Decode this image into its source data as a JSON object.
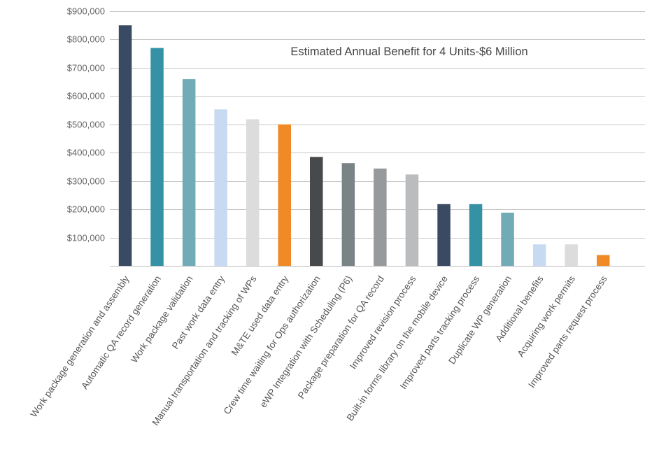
{
  "chart_data": {
    "type": "bar",
    "title": "Estimated Annual Benefit for 4 Units-$6 Million",
    "xlabel": "",
    "ylabel": "",
    "ylim": [
      0,
      900000
    ],
    "yticks": [
      100000,
      200000,
      300000,
      400000,
      500000,
      600000,
      700000,
      800000,
      900000
    ],
    "ytick_labels": [
      "$100,000",
      "$200,000",
      "$300,000",
      "$400,000",
      "$500,000",
      "$600,000",
      "$700,000",
      "$800,000",
      "$900,000"
    ],
    "grid": true,
    "legend": "none",
    "categories": [
      "Work package generation and assembly",
      "Automatic QA record generation",
      "Work package validation",
      "Past work data entry",
      "Manual transportation and tracking of WPs",
      "M&TE used data entry",
      "Crew time waiting for Ops authorization",
      "eWP Integration with Scheduling (P6)",
      "Package preparation for QA record",
      "Improved revision process",
      "Built-in forms library on the mobile device",
      "Improved parts tracking process",
      "Duplicate WP generation",
      "Additional benefits",
      "Acquiring work permits",
      "Improved parts request process"
    ],
    "values": [
      850000,
      770000,
      660000,
      553000,
      518000,
      500000,
      385000,
      363000,
      344000,
      323000,
      218000,
      218000,
      188000,
      76000,
      76000,
      38000
    ],
    "colors": [
      "#3b4a63",
      "#3592a5",
      "#71abb6",
      "#c8daf2",
      "#dcdcdc",
      "#f08a26",
      "#474a4c",
      "#7a8386",
      "#969a9d",
      "#bbbcbe",
      "#3b4a63",
      "#3592a5",
      "#71abb6",
      "#c8daf2",
      "#dcdcdc",
      "#f08a26"
    ]
  }
}
